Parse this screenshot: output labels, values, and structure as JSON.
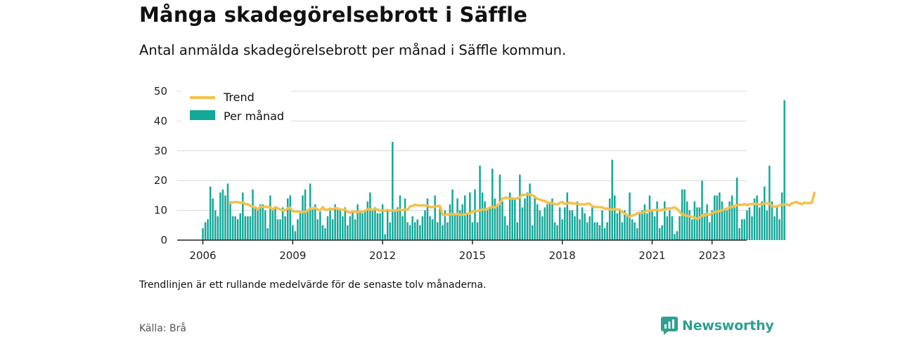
{
  "header": {
    "title": "Många skadegörelsebrott i Säffle",
    "subtitle": "Antal anmälda skadegörelsebrott per månad i Säffle kommun."
  },
  "footer": {
    "note": "Trendlinjen är ett rullande medelvärde för de senaste tolv månaderna.",
    "source": "Källa: Brå",
    "brand": "Newsworthy"
  },
  "colors": {
    "bars": "#14a89a",
    "trend": "#f7c04a",
    "grid": "#d9d9d9",
    "axis": "#222222",
    "brand": "#2e9f91"
  },
  "chart_data": {
    "type": "bar",
    "x_start": "2006-01",
    "x_ticks": [
      "2006",
      "2009",
      "2012",
      "2015",
      "2018",
      "2021",
      "2023"
    ],
    "y_ticks": [
      "0",
      "10",
      "20",
      "30",
      "40",
      "50"
    ],
    "ylim": [
      0,
      50
    ],
    "grid": true,
    "legend_position": "top-left",
    "series": [
      {
        "name": "Per månad",
        "type": "bar",
        "values": [
          4,
          6,
          7,
          18,
          14,
          10,
          8,
          16,
          17,
          15,
          19,
          13,
          8,
          8,
          7,
          9,
          16,
          8,
          8,
          8,
          17,
          11,
          10,
          12,
          12,
          10,
          4,
          15,
          10,
          11,
          7,
          7,
          11,
          8,
          14,
          15,
          5,
          3,
          7,
          9,
          15,
          17,
          10,
          19,
          11,
          12,
          7,
          10,
          5,
          4,
          8,
          10,
          7,
          12,
          11,
          10,
          8,
          11,
          5,
          8,
          10,
          7,
          12,
          10,
          9,
          10,
          13,
          16,
          10,
          11,
          9,
          9,
          12,
          2,
          10,
          6,
          33,
          10,
          11,
          15,
          8,
          14,
          6,
          5,
          8,
          6,
          7,
          5,
          8,
          10,
          14,
          8,
          7,
          15,
          6,
          11,
          5,
          10,
          6,
          12,
          17,
          9,
          14,
          10,
          12,
          15,
          9,
          16,
          6,
          17,
          6,
          25,
          16,
          13,
          10,
          11,
          24,
          14,
          12,
          22,
          13,
          8,
          5,
          16,
          14,
          14,
          6,
          22,
          11,
          14,
          16,
          19,
          5,
          15,
          12,
          10,
          8,
          11,
          12,
          13,
          14,
          6,
          5,
          11,
          7,
          11,
          16,
          10,
          10,
          8,
          13,
          7,
          11,
          9,
          6,
          8,
          11,
          6,
          6,
          5,
          10,
          4,
          6,
          14,
          27,
          15,
          9,
          10,
          6,
          10,
          8,
          16,
          7,
          6,
          4,
          9,
          10,
          12,
          9,
          15,
          10,
          8,
          13,
          4,
          5,
          13,
          8,
          10,
          8,
          2,
          3,
          8,
          17,
          17,
          13,
          10,
          7,
          13,
          11,
          11,
          20,
          9,
          12,
          6,
          10,
          15,
          15,
          16,
          13,
          10,
          10,
          13,
          15,
          11,
          21,
          4,
          7,
          7,
          10,
          11,
          8,
          14,
          15,
          11,
          13,
          18,
          10,
          25,
          13,
          8,
          11,
          7,
          16,
          47
        ]
      },
      {
        "name": "Trend",
        "type": "line",
        "values": [
          null,
          null,
          null,
          null,
          null,
          null,
          null,
          null,
          null,
          null,
          null,
          12.4,
          12.7,
          12.8,
          12.8,
          12.5,
          12.7,
          12.1,
          12.1,
          11.5,
          11.3,
          11.0,
          10.3,
          11.2,
          11.2,
          11.2,
          11.2,
          10.9,
          10.3,
          11.1,
          10.7,
          10.3,
          10.1,
          10.0,
          10.7,
          10.9,
          9.7,
          9.6,
          9.6,
          9.4,
          9.5,
          9.5,
          9.9,
          10.6,
          10.6,
          10.8,
          10.3,
          9.9,
          11.1,
          10.2,
          10.2,
          10.6,
          10.3,
          10.8,
          10.5,
          10.3,
          10.2,
          10.3,
          9.5,
          9.2,
          9.7,
          9.4,
          9.5,
          9.6,
          9.5,
          9.9,
          10.4,
          10.3,
          10.2,
          10.4,
          10.3,
          9.9,
          10.0,
          9.8,
          10.2,
          9.8,
          10.0,
          9.9,
          10.1,
          10.3,
          10.1,
          10.3,
          10.2,
          11.3,
          11.5,
          11.9,
          11.7,
          11.6,
          11.7,
          11.6,
          11.6,
          11.1,
          11.1,
          11.3,
          11.5,
          11.5,
          8.5,
          8.4,
          8.7,
          8.7,
          8.7,
          8.7,
          8.8,
          8.5,
          8.6,
          8.6,
          9.0,
          8.9,
          9.6,
          9.7,
          9.8,
          10.0,
          10.3,
          10.3,
          10.5,
          11.0,
          11.1,
          11.0,
          11.6,
          12.3,
          14.0,
          14.2,
          14.3,
          14.0,
          14.0,
          13.9,
          14.0,
          14.5,
          15.2,
          15.2,
          15.4,
          15.3,
          15.1,
          14.6,
          13.8,
          13.7,
          13.3,
          13.2,
          12.5,
          12.5,
          12.4,
          12.1,
          12.0,
          12.5,
          12.8,
          12.2,
          12.3,
          12.6,
          12.3,
          12.3,
          12.3,
          12.0,
          12.0,
          12.0,
          12.3,
          12.2,
          11.4,
          11.1,
          11.1,
          11.1,
          11.0,
          10.6,
          10.6,
          10.3,
          10.3,
          10.4,
          10.3,
          10.3,
          9.4,
          8.9,
          8.4,
          7.8,
          8.2,
          8.5,
          9.0,
          9.2,
          9.2,
          9.5,
          9.9,
          9.9,
          10.0,
          10.1,
          10.1,
          10.0,
          10.3,
          10.1,
          10.7,
          10.6,
          10.8,
          11.0,
          10.5,
          9.5,
          8.6,
          8.4,
          8.2,
          8.0,
          7.8,
          7.5,
          7.2,
          7.5,
          8.3,
          8.3,
          8.7,
          8.6,
          9.0,
          9.5,
          9.6,
          9.7,
          10.0,
          10.3,
          10.6,
          11.0,
          11.2,
          11.5,
          11.7,
          11.9,
          11.8,
          12.1,
          11.7,
          12.1,
          12.1,
          12.2,
          12.1,
          12.0,
          12.1,
          12.3,
          12.4,
          12.3,
          11.4,
          11.3,
          11.3,
          11.7,
          11.8,
          12.0,
          12.0,
          11.6,
          12.4,
          12.6,
          12.8,
          12.3,
          12.1,
          12.6,
          12.4,
          12.5,
          12.6,
          15.9
        ]
      }
    ]
  }
}
